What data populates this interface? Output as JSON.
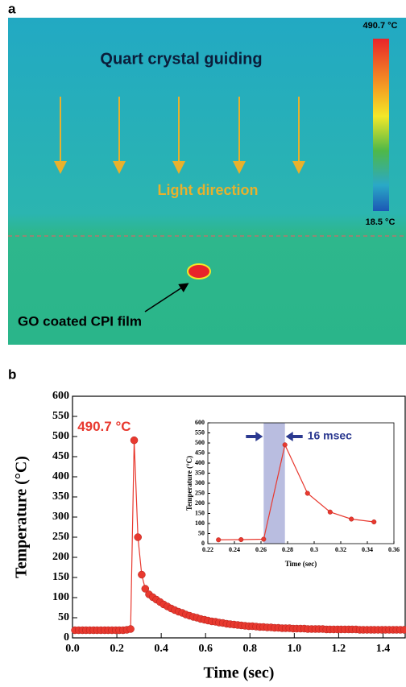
{
  "panel_a": {
    "label": "a",
    "title": "Quart crystal guiding",
    "light_label": "Light direction",
    "film_label": "GO coated CPI film",
    "colorbar_max": "490.7 °C",
    "colorbar_min": "18.5 °C"
  },
  "panel_b": {
    "label": "b"
  },
  "chart_data": [
    {
      "type": "line",
      "xlabel": "Time (sec)",
      "ylabel": "Temperature (°C)",
      "annotation": "490.7 °C",
      "color": "#e8392f",
      "x": [
        0.011,
        0.028,
        0.045,
        0.061,
        0.078,
        0.095,
        0.111,
        0.128,
        0.145,
        0.161,
        0.178,
        0.195,
        0.211,
        0.228,
        0.245,
        0.262,
        0.278,
        0.295,
        0.312,
        0.328,
        0.345,
        0.362,
        0.378,
        0.395,
        0.411,
        0.428,
        0.445,
        0.461,
        0.478,
        0.495,
        0.511,
        0.528,
        0.545,
        0.561,
        0.578,
        0.595,
        0.611,
        0.628,
        0.645,
        0.661,
        0.678,
        0.695,
        0.711,
        0.728,
        0.745,
        0.761,
        0.778,
        0.795,
        0.811,
        0.828,
        0.845,
        0.861,
        0.878,
        0.895,
        0.911,
        0.928,
        0.945,
        0.961,
        0.978,
        0.995,
        1.011,
        1.028,
        1.045,
        1.061,
        1.078,
        1.095,
        1.111,
        1.128,
        1.145,
        1.161,
        1.178,
        1.195,
        1.211,
        1.228,
        1.245,
        1.261,
        1.278,
        1.295,
        1.311,
        1.328,
        1.345,
        1.361,
        1.378,
        1.395,
        1.411,
        1.428,
        1.445,
        1.461,
        1.478,
        1.495
      ],
      "values": [
        19,
        19,
        19,
        19,
        19,
        19,
        19,
        19,
        19,
        19,
        19,
        19,
        19,
        19,
        20,
        22,
        490.7,
        250,
        157,
        122,
        108,
        101,
        95,
        89,
        83,
        78,
        73,
        69,
        65,
        62,
        58,
        55,
        52,
        50,
        47,
        45,
        43,
        41,
        40,
        38,
        37,
        35,
        34,
        33,
        32,
        31,
        30,
        29,
        29,
        28,
        27,
        27,
        26,
        26,
        25,
        25,
        24,
        24,
        24,
        23,
        23,
        23,
        23,
        22,
        22,
        22,
        22,
        22,
        21,
        21,
        21,
        21,
        21,
        21,
        21,
        21,
        21,
        20,
        20,
        20,
        20,
        20,
        20,
        20,
        20,
        20,
        20,
        20,
        20,
        20
      ],
      "xlim": [
        0,
        1.5
      ],
      "ylim": [
        0,
        600
      ],
      "xticks": [
        {
          "value": 0,
          "label": "0.0"
        },
        0.2,
        0.4,
        0.6,
        0.8,
        {
          "value": 1,
          "label": "1.0"
        },
        1.2,
        1.4
      ],
      "yticks": [
        0,
        50,
        100,
        150,
        200,
        250,
        300,
        350,
        400,
        450,
        500,
        550,
        600
      ]
    },
    {
      "type": "line",
      "xlabel": "Time (sec)",
      "ylabel": "Temperature (°C)",
      "annotation": "16 msec",
      "color": "#e8392f",
      "shaded_span": [
        0.262,
        0.278
      ],
      "shade_color": "#b9bde0",
      "x": [
        0.228,
        0.245,
        0.262,
        0.278,
        0.295,
        0.312,
        0.328,
        0.345
      ],
      "values": [
        19,
        20,
        22,
        490.7,
        250,
        157,
        122,
        108
      ],
      "xlim": [
        0.22,
        0.36
      ],
      "ylim": [
        0,
        600
      ],
      "xticks": [
        0.22,
        0.24,
        0.26,
        0.28,
        0.3,
        0.32,
        0.34,
        0.36
      ],
      "yticks": [
        0,
        50,
        100,
        150,
        200,
        250,
        300,
        350,
        400,
        450,
        500,
        550,
        600
      ]
    }
  ]
}
